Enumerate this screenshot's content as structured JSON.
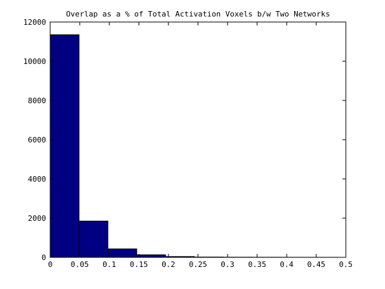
{
  "chart_data": {
    "type": "bar",
    "title": "Overlap as a % of Total Activation Voxels b/w Two Networks",
    "xlabel": "",
    "ylabel": "",
    "xlim": [
      0,
      0.5
    ],
    "ylim": [
      0,
      12000
    ],
    "x_ticks": [
      "0",
      "0.05",
      "0.1",
      "0.15",
      "0.2",
      "0.25",
      "0.3",
      "0.35",
      "0.4",
      "0.45",
      "0.5"
    ],
    "y_ticks": [
      "0",
      "2000",
      "4000",
      "6000",
      "8000",
      "10000",
      "12000"
    ],
    "grid": false,
    "bins": [
      {
        "x0": 0.0,
        "x1": 0.0488,
        "value": 11350
      },
      {
        "x0": 0.0488,
        "x1": 0.0976,
        "value": 1850
      },
      {
        "x0": 0.0976,
        "x1": 0.1464,
        "value": 430
      },
      {
        "x0": 0.1464,
        "x1": 0.1952,
        "value": 130
      },
      {
        "x0": 0.1952,
        "x1": 0.244,
        "value": 40
      },
      {
        "x0": 0.244,
        "x1": 0.2928,
        "value": 15
      },
      {
        "x0": 0.2928,
        "x1": 0.3416,
        "value": 8
      },
      {
        "x0": 0.3416,
        "x1": 0.3904,
        "value": 5
      },
      {
        "x0": 0.3904,
        "x1": 0.4392,
        "value": 3
      },
      {
        "x0": 0.4392,
        "x1": 0.488,
        "value": 2
      }
    ],
    "colors": {
      "bar_fill": "#000080",
      "bar_edge": "#000000"
    }
  }
}
